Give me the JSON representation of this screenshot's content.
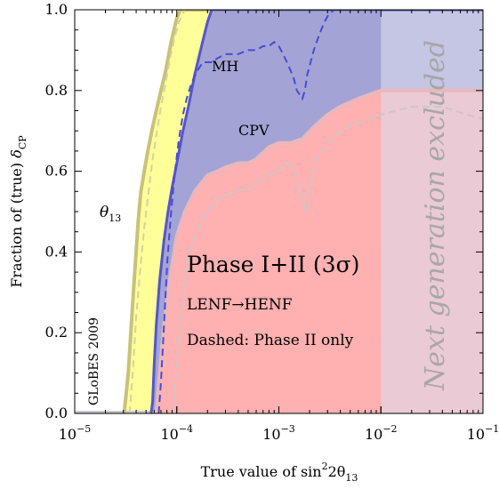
{
  "chart_data": {
    "type": "area",
    "xscale": "log",
    "xlim": [
      1e-05,
      0.1
    ],
    "ylim": [
      0,
      1
    ],
    "xlabel": "True value of sin²2θ₁₃",
    "ylabel": "Fraction of (true) δCP",
    "xticks": [
      {
        "value": 1e-05,
        "base": "10",
        "exp": "−5"
      },
      {
        "value": 0.0001,
        "base": "10",
        "exp": "−4"
      },
      {
        "value": 0.001,
        "base": "10",
        "exp": "−3"
      },
      {
        "value": 0.01,
        "base": "10",
        "exp": "−2"
      },
      {
        "value": 0.1,
        "base": "10",
        "exp": "−1"
      }
    ],
    "yticks": [
      {
        "value": 0.0,
        "label": "0.0"
      },
      {
        "value": 0.2,
        "label": "0.2"
      },
      {
        "value": 0.4,
        "label": "0.4"
      },
      {
        "value": 0.6,
        "label": "0.6"
      },
      {
        "value": 0.8,
        "label": "0.8"
      },
      {
        "value": 1.0,
        "label": "1.0"
      }
    ],
    "series": [
      {
        "name": "θ13",
        "style": "filled",
        "fill": "#ffff99",
        "stroke": "#c8c27a",
        "x": [
          3.05e-05,
          3.35e-05,
          3.65e-05,
          3.9e-05,
          4.2e-05,
          4.45e-05,
          4.8e-05,
          5.2e-05,
          5.7e-05,
          6.3e-05,
          7e-05,
          7.8e-05,
          8.8e-05,
          0.0001,
          0.000108,
          0.1
        ],
        "y": [
          0.0,
          0.1,
          0.25,
          0.36,
          0.48,
          0.55,
          0.6,
          0.65,
          0.7,
          0.75,
          0.8,
          0.85,
          0.92,
          0.98,
          1.0,
          1.0
        ]
      },
      {
        "name": "MH",
        "style": "filled",
        "fill": "#a3a3d6",
        "stroke": "#5555cc",
        "x": [
          5.6e-05,
          5.8e-05,
          6e-05,
          6.3e-05,
          6.8e-05,
          7.5e-05,
          8.2e-05,
          9e-05,
          0.0001,
          0.000115,
          0.00013,
          0.00015,
          0.000175,
          0.0002,
          0.00022,
          0.1
        ],
        "y": [
          0.0,
          0.03,
          0.12,
          0.22,
          0.33,
          0.43,
          0.5,
          0.56,
          0.62,
          0.7,
          0.76,
          0.84,
          0.91,
          0.97,
          1.0,
          1.0
        ]
      },
      {
        "name": "CPV",
        "style": "filled",
        "fill": "#ffb0b0",
        "stroke": "#e8b8bc",
        "x": [
          6.3e-05,
          6.8e-05,
          7.5e-05,
          8.5e-05,
          0.0001,
          0.00012,
          0.00015,
          0.0002,
          0.00025,
          0.0003,
          0.0004,
          0.0005,
          0.0006,
          0.0008,
          0.001,
          0.0013,
          0.0017,
          0.0022,
          0.003,
          0.004,
          0.006,
          0.01,
          0.02,
          0.05,
          0.1
        ],
        "y": [
          0.0,
          0.1,
          0.22,
          0.33,
          0.44,
          0.5,
          0.55,
          0.59,
          0.6,
          0.61,
          0.62,
          0.62,
          0.63,
          0.66,
          0.67,
          0.67,
          0.68,
          0.71,
          0.74,
          0.76,
          0.78,
          0.8,
          0.8,
          0.8,
          0.8
        ]
      },
      {
        "name": "θ13 Phase II only",
        "style": "dashed",
        "stroke": "#d6d2a0",
        "x": [
          3.45e-05,
          3.7e-05,
          4e-05,
          4.4e-05,
          4.8e-05,
          5.3e-05,
          5.8e-05,
          6.4e-05,
          7e-05,
          7.8e-05,
          8.6e-05,
          9.5e-05,
          0.000105,
          0.00012
        ],
        "y": [
          0.0,
          0.1,
          0.24,
          0.36,
          0.46,
          0.55,
          0.63,
          0.7,
          0.76,
          0.82,
          0.88,
          0.93,
          0.97,
          1.0
        ]
      },
      {
        "name": "MH Phase II only",
        "style": "dashed",
        "stroke": "#4a4ad2",
        "x": [
          6.65e-05,
          7e-05,
          7.5e-05,
          8.1e-05,
          8.8e-05,
          9.6e-05,
          0.000105,
          0.000115,
          0.000125,
          0.00014,
          0.00016,
          0.00018,
          0.0002,
          0.00022,
          0.00025,
          0.0003,
          0.00035,
          0.0004,
          0.0005,
          0.0006,
          0.0007,
          0.0008,
          0.0009,
          0.001,
          0.0011,
          0.0012,
          0.0013,
          0.0014,
          0.0015,
          0.0016,
          0.0017,
          0.0018,
          0.0019,
          0.002,
          0.0022,
          0.0025,
          0.0028,
          0.0031,
          0.0035,
          0.1
        ],
        "y": [
          0.0,
          0.08,
          0.22,
          0.38,
          0.5,
          0.6,
          0.68,
          0.74,
          0.78,
          0.82,
          0.85,
          0.87,
          0.87,
          0.87,
          0.88,
          0.89,
          0.89,
          0.89,
          0.9,
          0.9,
          0.91,
          0.91,
          0.92,
          0.91,
          0.89,
          0.87,
          0.85,
          0.83,
          0.8,
          0.79,
          0.78,
          0.8,
          0.84,
          0.86,
          0.9,
          0.94,
          0.97,
          0.99,
          1.0,
          1.0
        ]
      },
      {
        "name": "CPV Phase II only",
        "style": "dashed",
        "stroke": "#c8c8c8",
        "x": [
          9.15e-05,
          9.8e-05,
          0.000108,
          0.00012,
          0.00014,
          0.00017,
          0.0002,
          0.00025,
          0.0003,
          0.0004,
          0.0005,
          0.0006,
          0.0008,
          0.001,
          0.0012,
          0.0014,
          0.0016,
          0.0018,
          0.002,
          0.0023,
          0.003,
          0.004,
          0.006,
          0.01,
          0.02,
          0.04,
          0.07,
          0.1
        ],
        "y": [
          0.0,
          0.1,
          0.22,
          0.33,
          0.42,
          0.47,
          0.5,
          0.53,
          0.54,
          0.55,
          0.56,
          0.57,
          0.59,
          0.6,
          0.62,
          0.6,
          0.55,
          0.5,
          0.56,
          0.63,
          0.67,
          0.7,
          0.72,
          0.74,
          0.76,
          0.76,
          0.74,
          0.73
        ]
      }
    ],
    "excluded_region": {
      "from": 0.01,
      "to": 0.1,
      "label": "Next generation excluded"
    },
    "labels": {
      "theta13_base": "θ",
      "theta13_sub": "13",
      "mh": "MH",
      "cpv": "CPV",
      "phase": "Phase I+II (3σ)",
      "lenf": "LENF→HENF",
      "dashed": "Dashed: Phase II only",
      "globes": "GLoBES 2009"
    }
  }
}
